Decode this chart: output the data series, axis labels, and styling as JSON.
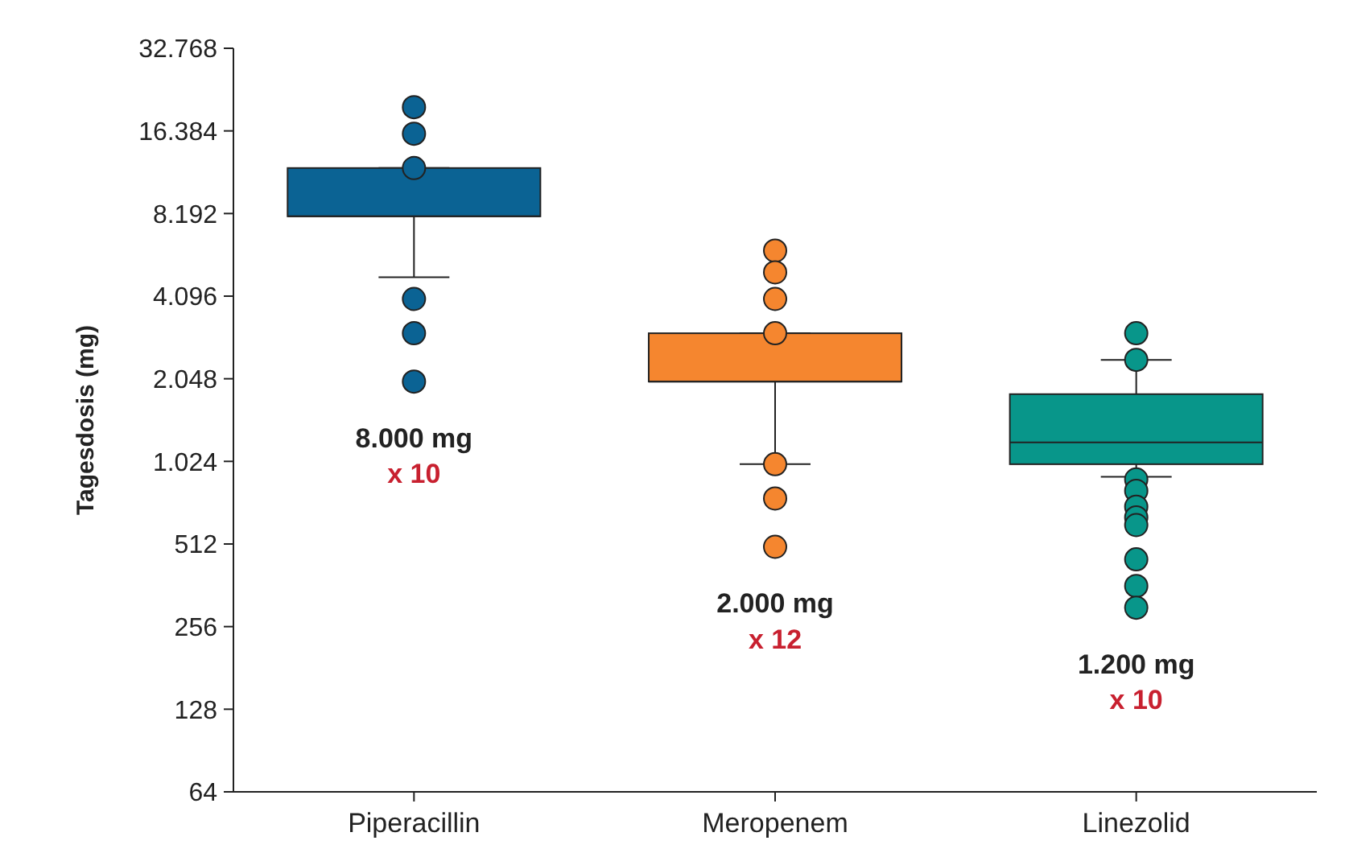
{
  "chart_data": {
    "type": "box",
    "ylabel": "Tagesdosis (mg)",
    "log": true,
    "categories": [
      "Piperacillin",
      "Meropenem",
      "Linezolid"
    ],
    "colors": [
      "#0b6394",
      "#f5862f",
      "#08968a"
    ],
    "boxes": [
      {
        "low": 4800,
        "q1": 8000,
        "median": 8000,
        "q3": 12000,
        "high": 12000,
        "outliers": [
          20000,
          16000,
          12000,
          4000,
          3000,
          2000
        ]
      },
      {
        "low": 1000,
        "q1": 2000,
        "median": 2000,
        "q3": 3000,
        "high": 3000,
        "outliers": [
          6000,
          5000,
          4000,
          3000,
          1000,
          750,
          500
        ]
      },
      {
        "low": 900,
        "q1": 1000,
        "median": 1200,
        "q3": 1800,
        "high": 2400,
        "outliers": [
          3000,
          2400,
          880,
          800,
          700,
          640,
          600,
          450,
          360,
          300
        ]
      }
    ],
    "ylim": [
      64,
      32768
    ],
    "yticks": [
      64,
      128,
      256,
      512,
      {
        "value": 1024,
        "label": "1.024"
      },
      {
        "value": 2048,
        "label": "2.048"
      },
      {
        "value": 4096,
        "label": "4.096"
      },
      {
        "value": 8192,
        "label": "8.192"
      },
      {
        "value": 16384,
        "label": "16.384"
      },
      {
        "value": 32768,
        "label": "32.768"
      }
    ],
    "annotations": [
      "8.000 mg\nx 10",
      "2.000 mg\nx 12",
      "1.200 mg\nx 10"
    ]
  }
}
